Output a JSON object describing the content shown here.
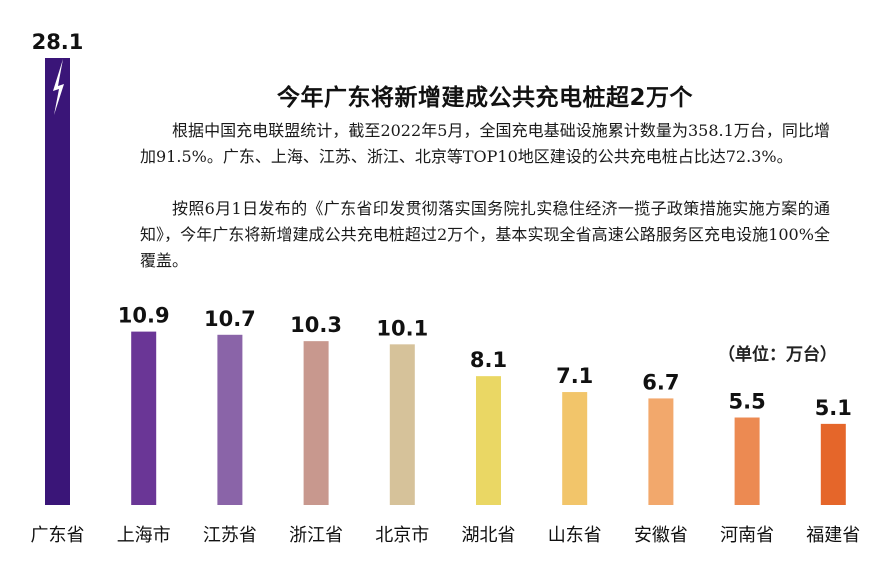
{
  "title": "今年广东将新增建成公共充电桩超2万个",
  "paragraphs": [
    "根据中国充电联盟统计，截至2022年5月，全国充电基础设施累计数量为358.1万台，同比增加91.5%。广东、上海、江苏、浙江、北京等TOP10地区建设的公共充电桩占比达72.3%。",
    "按照6月1日发布的《广东省印发贯彻落实国务院扎实稳住经济一揽子政策措施实施方案的通知》，今年广东将新增建成公共充电桩超过2万个，基本实现全省高速公路服务区充电设施100%全覆盖。"
  ],
  "unit_label": "（单位：万台）",
  "chart_data": {
    "type": "bar",
    "title": "今年广东将新增建成公共充电桩超2万个",
    "unit": "万台",
    "categories": [
      "广东省",
      "上海市",
      "江苏省",
      "浙江省",
      "北京市",
      "湖北省",
      "山东省",
      "安徽省",
      "河南省",
      "福建省"
    ],
    "values": [
      28.1,
      10.9,
      10.7,
      10.3,
      10.1,
      8.1,
      7.1,
      6.7,
      5.5,
      5.1
    ],
    "value_labels": [
      "28.1",
      "10.9",
      "10.7",
      "10.3",
      "10.1",
      "8.1",
      "7.1",
      "6.7",
      "5.5",
      "5.1"
    ],
    "colors": [
      "#3a1578",
      "#6a3696",
      "#8a64a8",
      "#c8988e",
      "#d6c29a",
      "#ead764",
      "#f2c56a",
      "#f2a86c",
      "#ec8a52",
      "#e5662a"
    ],
    "ylim": [
      0,
      28.1
    ],
    "grid": false,
    "legend": "none"
  }
}
